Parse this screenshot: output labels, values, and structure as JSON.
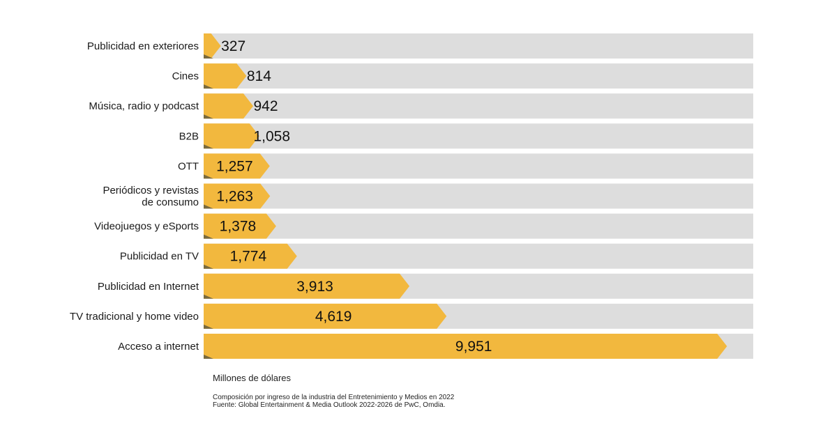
{
  "chart_data": {
    "type": "bar",
    "orientation": "horizontal",
    "categories": [
      [
        "Publicidad en exteriores"
      ],
      [
        "Cines"
      ],
      [
        "Música, radio y podcast"
      ],
      [
        "B2B"
      ],
      [
        "OTT"
      ],
      [
        "Periódicos y revistas",
        "de consumo"
      ],
      [
        "Videojuegos y eSports"
      ],
      [
        "Publicidad en TV"
      ],
      [
        "Publicidad en Internet"
      ],
      [
        "TV tradicional y home video"
      ],
      [
        "Acceso a internet"
      ]
    ],
    "values": [
      327,
      814,
      942,
      1058,
      1257,
      1263,
      1378,
      1774,
      3913,
      4619,
      9951
    ],
    "value_labels": [
      "327",
      "814",
      "942",
      "1,058",
      "1,257",
      "1,263",
      "1,378",
      "1,774",
      "3,913",
      "4,619",
      "9,951"
    ],
    "xlim": [
      0,
      10450
    ],
    "xlabel": "Millones de dólares",
    "grid": false,
    "legend": "none"
  },
  "unit_label": "Millones de dólares",
  "note_lines": [
    "Composición por ingreso de la industria del Entretenimiento y Medios en 2022",
    "Fuente: Global Entertainment & Media Outlook 2022-2026 de PwC, Omdia."
  ],
  "colors": {
    "bar": "#F2B83E",
    "bar_shadow": "#7a6a3e",
    "track": "#DDDDDD"
  }
}
